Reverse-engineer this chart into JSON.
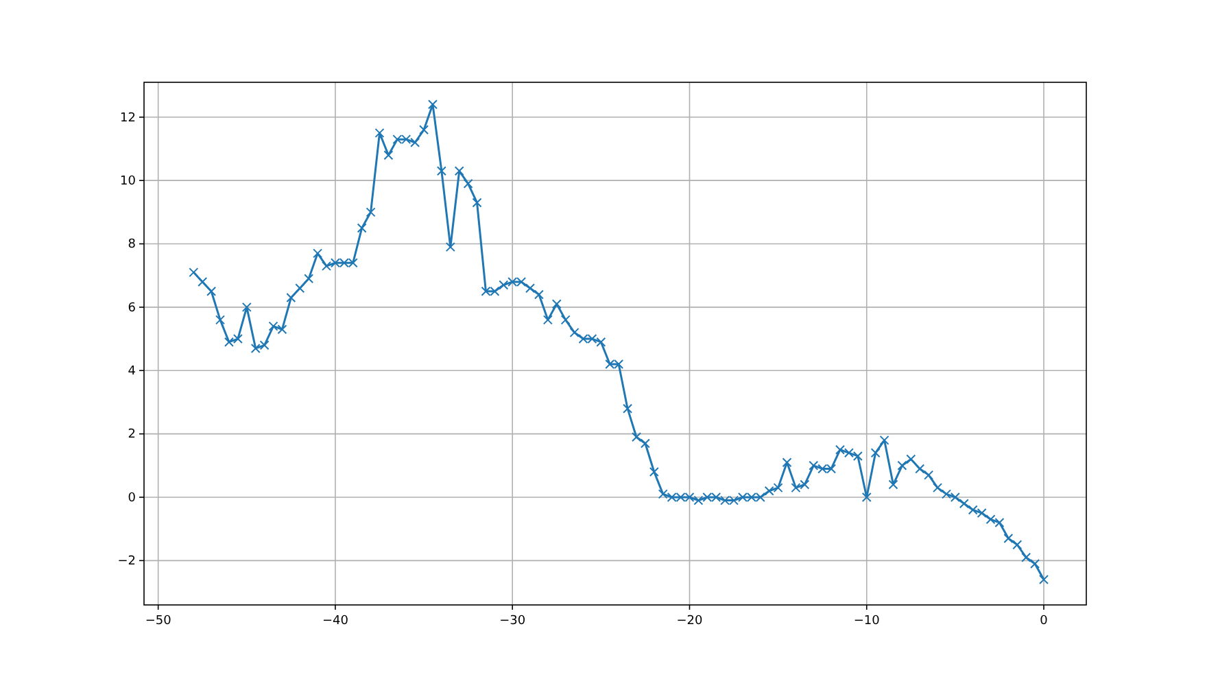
{
  "chart_data": {
    "type": "line",
    "x": [
      -48,
      -47.5,
      -47,
      -46.5,
      -46,
      -45.5,
      -45,
      -44.5,
      -44,
      -43.5,
      -43,
      -42.5,
      -42,
      -41.5,
      -41,
      -40.5,
      -40,
      -39.5,
      -39,
      -38.5,
      -38,
      -37.5,
      -37,
      -36.5,
      -36,
      -35.5,
      -35,
      -34.5,
      -34,
      -33.5,
      -33,
      -32.5,
      -32,
      -31.5,
      -31,
      -30.5,
      -30,
      -29.5,
      -29,
      -28.5,
      -28,
      -27.5,
      -27,
      -26.5,
      -26,
      -25.5,
      -25,
      -24.5,
      -24,
      -23.5,
      -23,
      -22.5,
      -22,
      -21.5,
      -21,
      -20.5,
      -20,
      -19.5,
      -19,
      -18.5,
      -18,
      -17.5,
      -17,
      -16.5,
      -16,
      -15.5,
      -15,
      -14.5,
      -14,
      -13.5,
      -13,
      -12.5,
      -12,
      -11.5,
      -11,
      -10.5,
      -10,
      -9.5,
      -9,
      -8.5,
      -8,
      -7.5,
      -7,
      -6.5,
      -6,
      -5.5,
      -5,
      -4.5,
      -4,
      -3.5,
      -3,
      -2.5,
      -2,
      -1.5,
      -1,
      -0.5,
      0
    ],
    "series": [
      {
        "color": "#1f77b4",
        "values": [
          7.1,
          6.8,
          6.5,
          5.6,
          4.9,
          5.0,
          6.0,
          4.7,
          4.8,
          5.4,
          5.3,
          6.3,
          6.6,
          6.9,
          7.7,
          7.3,
          7.4,
          7.4,
          7.4,
          8.5,
          9.0,
          11.5,
          10.8,
          11.3,
          11.3,
          11.2,
          11.6,
          12.4,
          10.3,
          7.9,
          10.3,
          9.9,
          9.3,
          6.5,
          6.5,
          6.7,
          6.8,
          6.8,
          6.6,
          6.4,
          5.6,
          6.1,
          5.6,
          5.2,
          5.0,
          5.0,
          4.9,
          4.2,
          4.2,
          2.8,
          1.9,
          1.7,
          0.8,
          0.1,
          0.0,
          0.0,
          0.0,
          -0.1,
          0.0,
          0.0,
          -0.1,
          -0.1,
          0.0,
          0.0,
          0.0,
          0.2,
          0.3,
          1.1,
          0.3,
          0.4,
          1.0,
          0.9,
          0.9,
          1.5,
          1.4,
          1.3,
          0.0,
          1.4,
          1.8,
          0.4,
          1.0,
          1.2,
          0.9,
          0.7,
          0.3,
          0.1,
          0.0,
          -0.2,
          -0.4,
          -0.5,
          -0.7,
          -0.8,
          -1.3,
          -1.5,
          -1.9,
          -2.1,
          -2.6
        ]
      }
    ],
    "xlim": [
      -50.8,
      2.4
    ],
    "ylim": [
      -3.4,
      13.1
    ],
    "xticks": [
      {
        "value": -50,
        "label": "−50"
      },
      {
        "value": -40,
        "label": "−40"
      },
      {
        "value": -30,
        "label": "−30"
      },
      {
        "value": -20,
        "label": "−20"
      },
      {
        "value": -10,
        "label": "−10"
      },
      0
    ],
    "yticks": [
      {
        "value": -2,
        "label": "−2"
      },
      0,
      2,
      4,
      6,
      8,
      10,
      12
    ],
    "grid": true,
    "marker": "cross",
    "line_style": "solid"
  }
}
